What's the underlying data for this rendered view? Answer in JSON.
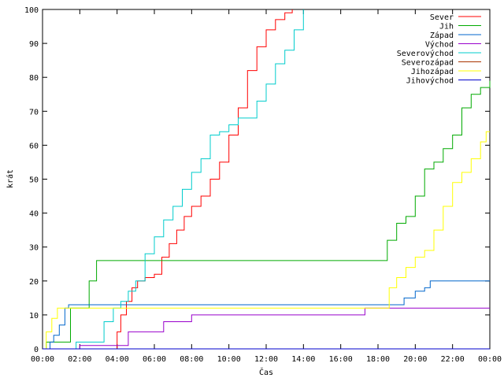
{
  "chart_data": {
    "type": "line",
    "title": "",
    "xlabel": "Čas",
    "ylabel": "krát",
    "xlim": [
      0,
      24
    ],
    "ylim": [
      0,
      100
    ],
    "x_unit": "hours since 00:00",
    "x_ticks": [
      {
        "value": 0,
        "label": "00:00"
      },
      {
        "value": 2,
        "label": "02:00"
      },
      {
        "value": 4,
        "label": "04:00"
      },
      {
        "value": 6,
        "label": "06:00"
      },
      {
        "value": 8,
        "label": "08:00"
      },
      {
        "value": 10,
        "label": "10:00"
      },
      {
        "value": 12,
        "label": "12:00"
      },
      {
        "value": 14,
        "label": "14:00"
      },
      {
        "value": 16,
        "label": "16:00"
      },
      {
        "value": 18,
        "label": "18:00"
      },
      {
        "value": 20,
        "label": "20:00"
      },
      {
        "value": 22,
        "label": "22:00"
      },
      {
        "value": 24,
        "label": "00:00"
      }
    ],
    "y_ticks": [
      0,
      10,
      20,
      30,
      40,
      50,
      60,
      70,
      80,
      90,
      100
    ],
    "grid": false,
    "legend_position": "top-right",
    "series": [
      {
        "name": "Sever",
        "color": "#ff0000",
        "points": [
          [
            0,
            0
          ],
          [
            3.8,
            0
          ],
          [
            4.0,
            5
          ],
          [
            4.2,
            10
          ],
          [
            4.5,
            14
          ],
          [
            4.8,
            18
          ],
          [
            5.1,
            20
          ],
          [
            5.5,
            21
          ],
          [
            6.0,
            22
          ],
          [
            6.4,
            27
          ],
          [
            6.8,
            31
          ],
          [
            7.2,
            35
          ],
          [
            7.6,
            39
          ],
          [
            8.0,
            42
          ],
          [
            8.5,
            45
          ],
          [
            9.0,
            50
          ],
          [
            9.5,
            55
          ],
          [
            10.0,
            63
          ],
          [
            10.5,
            71
          ],
          [
            11.0,
            82
          ],
          [
            11.5,
            89
          ],
          [
            12.0,
            94
          ],
          [
            12.5,
            97
          ],
          [
            13.0,
            99
          ],
          [
            13.4,
            100
          ]
        ]
      },
      {
        "name": "Jih",
        "color": "#00aa00",
        "points": [
          [
            0,
            0
          ],
          [
            0.2,
            2
          ],
          [
            1.2,
            2
          ],
          [
            1.5,
            12
          ],
          [
            2.2,
            12
          ],
          [
            2.5,
            20
          ],
          [
            2.9,
            26
          ],
          [
            18.2,
            26
          ],
          [
            18.5,
            32
          ],
          [
            19.0,
            37
          ],
          [
            19.5,
            39
          ],
          [
            20.0,
            45
          ],
          [
            20.5,
            53
          ],
          [
            21.0,
            55
          ],
          [
            21.5,
            59
          ],
          [
            22.0,
            63
          ],
          [
            22.5,
            71
          ],
          [
            23.0,
            75
          ],
          [
            23.5,
            77
          ],
          [
            24.0,
            79
          ]
        ]
      },
      {
        "name": "Západ",
        "color": "#0066cc",
        "points": [
          [
            0,
            0
          ],
          [
            0.4,
            2
          ],
          [
            0.6,
            4
          ],
          [
            0.9,
            7
          ],
          [
            1.2,
            12
          ],
          [
            1.4,
            13
          ],
          [
            19.0,
            13
          ],
          [
            19.4,
            15
          ],
          [
            20.0,
            17
          ],
          [
            20.5,
            18
          ],
          [
            20.8,
            20
          ],
          [
            24.0,
            20
          ]
        ]
      },
      {
        "name": "Východ",
        "color": "#9900cc",
        "points": [
          [
            0,
            0
          ],
          [
            1.8,
            0
          ],
          [
            2.0,
            1
          ],
          [
            4.5,
            1
          ],
          [
            4.6,
            5
          ],
          [
            5.8,
            5
          ],
          [
            6.5,
            8
          ],
          [
            7.8,
            8
          ],
          [
            8.0,
            10
          ],
          [
            17.2,
            10
          ],
          [
            17.3,
            12
          ],
          [
            24.0,
            12
          ]
        ]
      },
      {
        "name": "Severovýchod",
        "color": "#00cccc",
        "points": [
          [
            0,
            0
          ],
          [
            1.6,
            0
          ],
          [
            1.8,
            2
          ],
          [
            3.0,
            2
          ],
          [
            3.3,
            8
          ],
          [
            3.8,
            12
          ],
          [
            4.2,
            14
          ],
          [
            4.6,
            17
          ],
          [
            5.0,
            20
          ],
          [
            5.5,
            28
          ],
          [
            6.0,
            33
          ],
          [
            6.5,
            38
          ],
          [
            7.0,
            42
          ],
          [
            7.5,
            47
          ],
          [
            8.0,
            52
          ],
          [
            8.5,
            56
          ],
          [
            9.0,
            63
          ],
          [
            9.5,
            64
          ],
          [
            10.0,
            66
          ],
          [
            10.5,
            68
          ],
          [
            11.0,
            68
          ],
          [
            11.5,
            73
          ],
          [
            12.0,
            78
          ],
          [
            12.5,
            84
          ],
          [
            13.0,
            88
          ],
          [
            13.5,
            94
          ],
          [
            14.0,
            100
          ]
        ]
      },
      {
        "name": "Severozápad",
        "color": "#aa3300",
        "points": [
          [
            0,
            0
          ],
          [
            24.0,
            0
          ]
        ]
      },
      {
        "name": "Jihozápad",
        "color": "#ffff00",
        "points": [
          [
            0,
            0
          ],
          [
            0.2,
            5
          ],
          [
            0.5,
            9
          ],
          [
            0.8,
            12
          ],
          [
            18.4,
            12
          ],
          [
            18.6,
            18
          ],
          [
            19.0,
            21
          ],
          [
            19.5,
            24
          ],
          [
            20.0,
            27
          ],
          [
            20.5,
            29
          ],
          [
            21.0,
            35
          ],
          [
            21.5,
            42
          ],
          [
            22.0,
            49
          ],
          [
            22.5,
            52
          ],
          [
            23.0,
            56
          ],
          [
            23.5,
            61
          ],
          [
            23.8,
            64
          ],
          [
            24.0,
            64
          ]
        ]
      },
      {
        "name": "Jihovýchod",
        "color": "#0000cc",
        "points": [
          [
            0,
            0
          ],
          [
            24.0,
            0
          ]
        ]
      }
    ]
  }
}
